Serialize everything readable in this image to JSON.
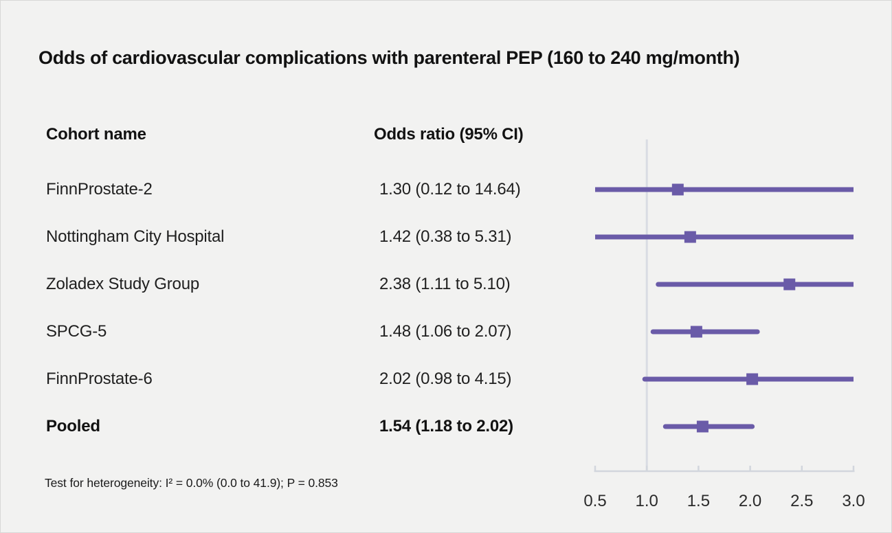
{
  "title": "Odds of cardiovascular complications with parenteral PEP (160 to 240 mg/month)",
  "columns": {
    "cohort": "Cohort name",
    "odds_ratio": "Odds ratio (95% CI)"
  },
  "footnote": "Test for heterogeneity: I² = 0.0% (0.0 to 41.9); P = 0.853",
  "chart_data": {
    "type": "forest",
    "title": "Odds of cardiovascular complications with parenteral PEP (160 to 240 mg/month)",
    "x_scale": "linear",
    "xlim": [
      0.5,
      3.0
    ],
    "x_ticks": [
      0.5,
      1.0,
      1.5,
      2.0,
      2.5,
      3.0
    ],
    "reference_x": 1.0,
    "grid": "off",
    "rows": [
      {
        "name": "FinnProstate-2",
        "or_text": "1.30 (0.12 to 14.64)",
        "estimate": 1.3,
        "ci_lower": 0.12,
        "ci_upper": 14.64,
        "pooled": false
      },
      {
        "name": "Nottingham City Hospital",
        "or_text": "1.42 (0.38 to 5.31)",
        "estimate": 1.42,
        "ci_lower": 0.38,
        "ci_upper": 5.31,
        "pooled": false
      },
      {
        "name": "Zoladex Study Group",
        "or_text": "2.38 (1.11 to 5.10)",
        "estimate": 2.38,
        "ci_lower": 1.11,
        "ci_upper": 5.1,
        "pooled": false
      },
      {
        "name": "SPCG-5",
        "or_text": "1.48 (1.06 to 2.07)",
        "estimate": 1.48,
        "ci_lower": 1.06,
        "ci_upper": 2.07,
        "pooled": false
      },
      {
        "name": "FinnProstate-6",
        "or_text": "2.02 (0.98 to 4.15)",
        "estimate": 2.02,
        "ci_lower": 0.98,
        "ci_upper": 4.15,
        "pooled": false
      },
      {
        "name": "Pooled",
        "or_text": "1.54 (1.18 to 2.02)",
        "estimate": 1.54,
        "ci_lower": 1.18,
        "ci_upper": 2.02,
        "pooled": true
      }
    ],
    "colors": {
      "marker": "#6a5ba8",
      "axis": "#d2d6dd",
      "reference_line": "#d9dce3",
      "tick_label": "#2b2b2b",
      "background": "#f2f2f1"
    }
  }
}
